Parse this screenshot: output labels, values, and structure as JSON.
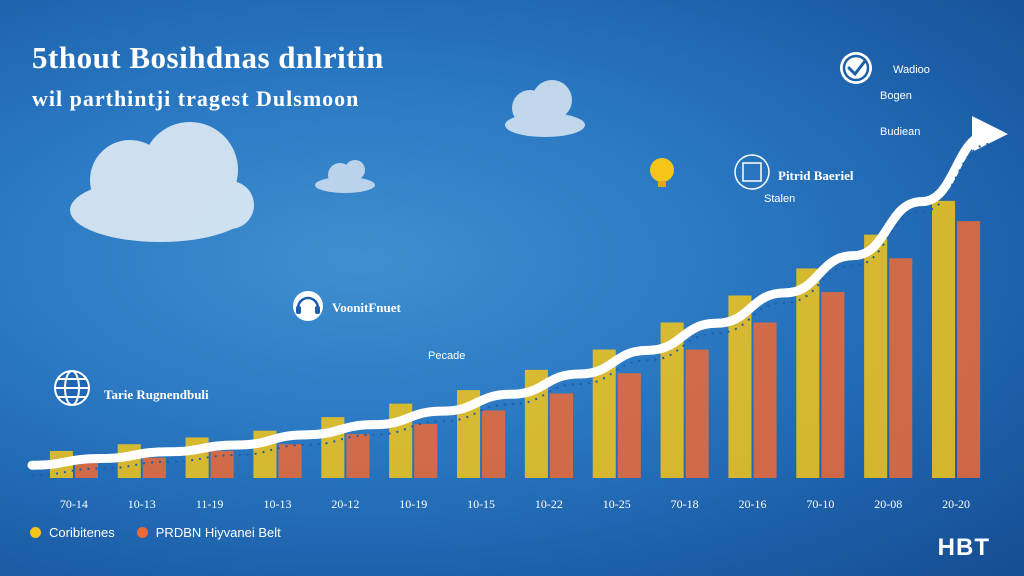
{
  "chart_data": {
    "type": "bar",
    "title": "5thout Bosihdnas dnlritin",
    "subtitle": "wil parthintji tragest Dulsmoon",
    "categories": [
      "70-14",
      "10-13",
      "11-19",
      "10-13",
      "20-12",
      "10-19",
      "10-15",
      "10-22",
      "10-25",
      "70-18",
      "20-16",
      "70-10",
      "20-08",
      "20-20"
    ],
    "series": [
      {
        "name": "Coribitenes",
        "color": "#f5c518",
        "values": [
          8,
          10,
          12,
          14,
          18,
          22,
          26,
          32,
          38,
          46,
          54,
          62,
          72,
          82
        ]
      },
      {
        "name": "PRDBN Hiyvanei Belt",
        "color": "#ee6a35",
        "values": [
          5,
          6,
          8,
          10,
          13,
          16,
          20,
          25,
          31,
          38,
          46,
          55,
          65,
          76
        ]
      }
    ],
    "trend": [
      2,
      4,
      6,
      8,
      11,
      14,
      18,
      23,
      29,
      36,
      44,
      53,
      64,
      80,
      100
    ],
    "ylim": [
      0,
      100
    ],
    "grid": false,
    "legend_position": "bottom-left"
  },
  "annotations": [
    {
      "text": "Wadioo",
      "style": "small"
    },
    {
      "text": "Bogen",
      "style": "small"
    },
    {
      "text": "Budiean",
      "style": "small"
    },
    {
      "text": "Pitrid Baeriel",
      "style": "bold"
    },
    {
      "text": "Stalen",
      "style": "small"
    },
    {
      "text": "VoonitFnuet",
      "style": "bold"
    },
    {
      "text": "Tarie Rugnendbuli",
      "style": "bold"
    },
    {
      "text": "Pecade",
      "style": "small"
    }
  ],
  "brand": "HBT",
  "colors": {
    "background": "#2a78c2",
    "bar_yellow": "#f5c518",
    "bar_orange": "#ee6a35",
    "trend": "#ffffff"
  },
  "icons": [
    "cloud-icon",
    "check-circle-icon",
    "globe-icon",
    "headset-icon",
    "lightbulb-icon",
    "chip-icon"
  ]
}
